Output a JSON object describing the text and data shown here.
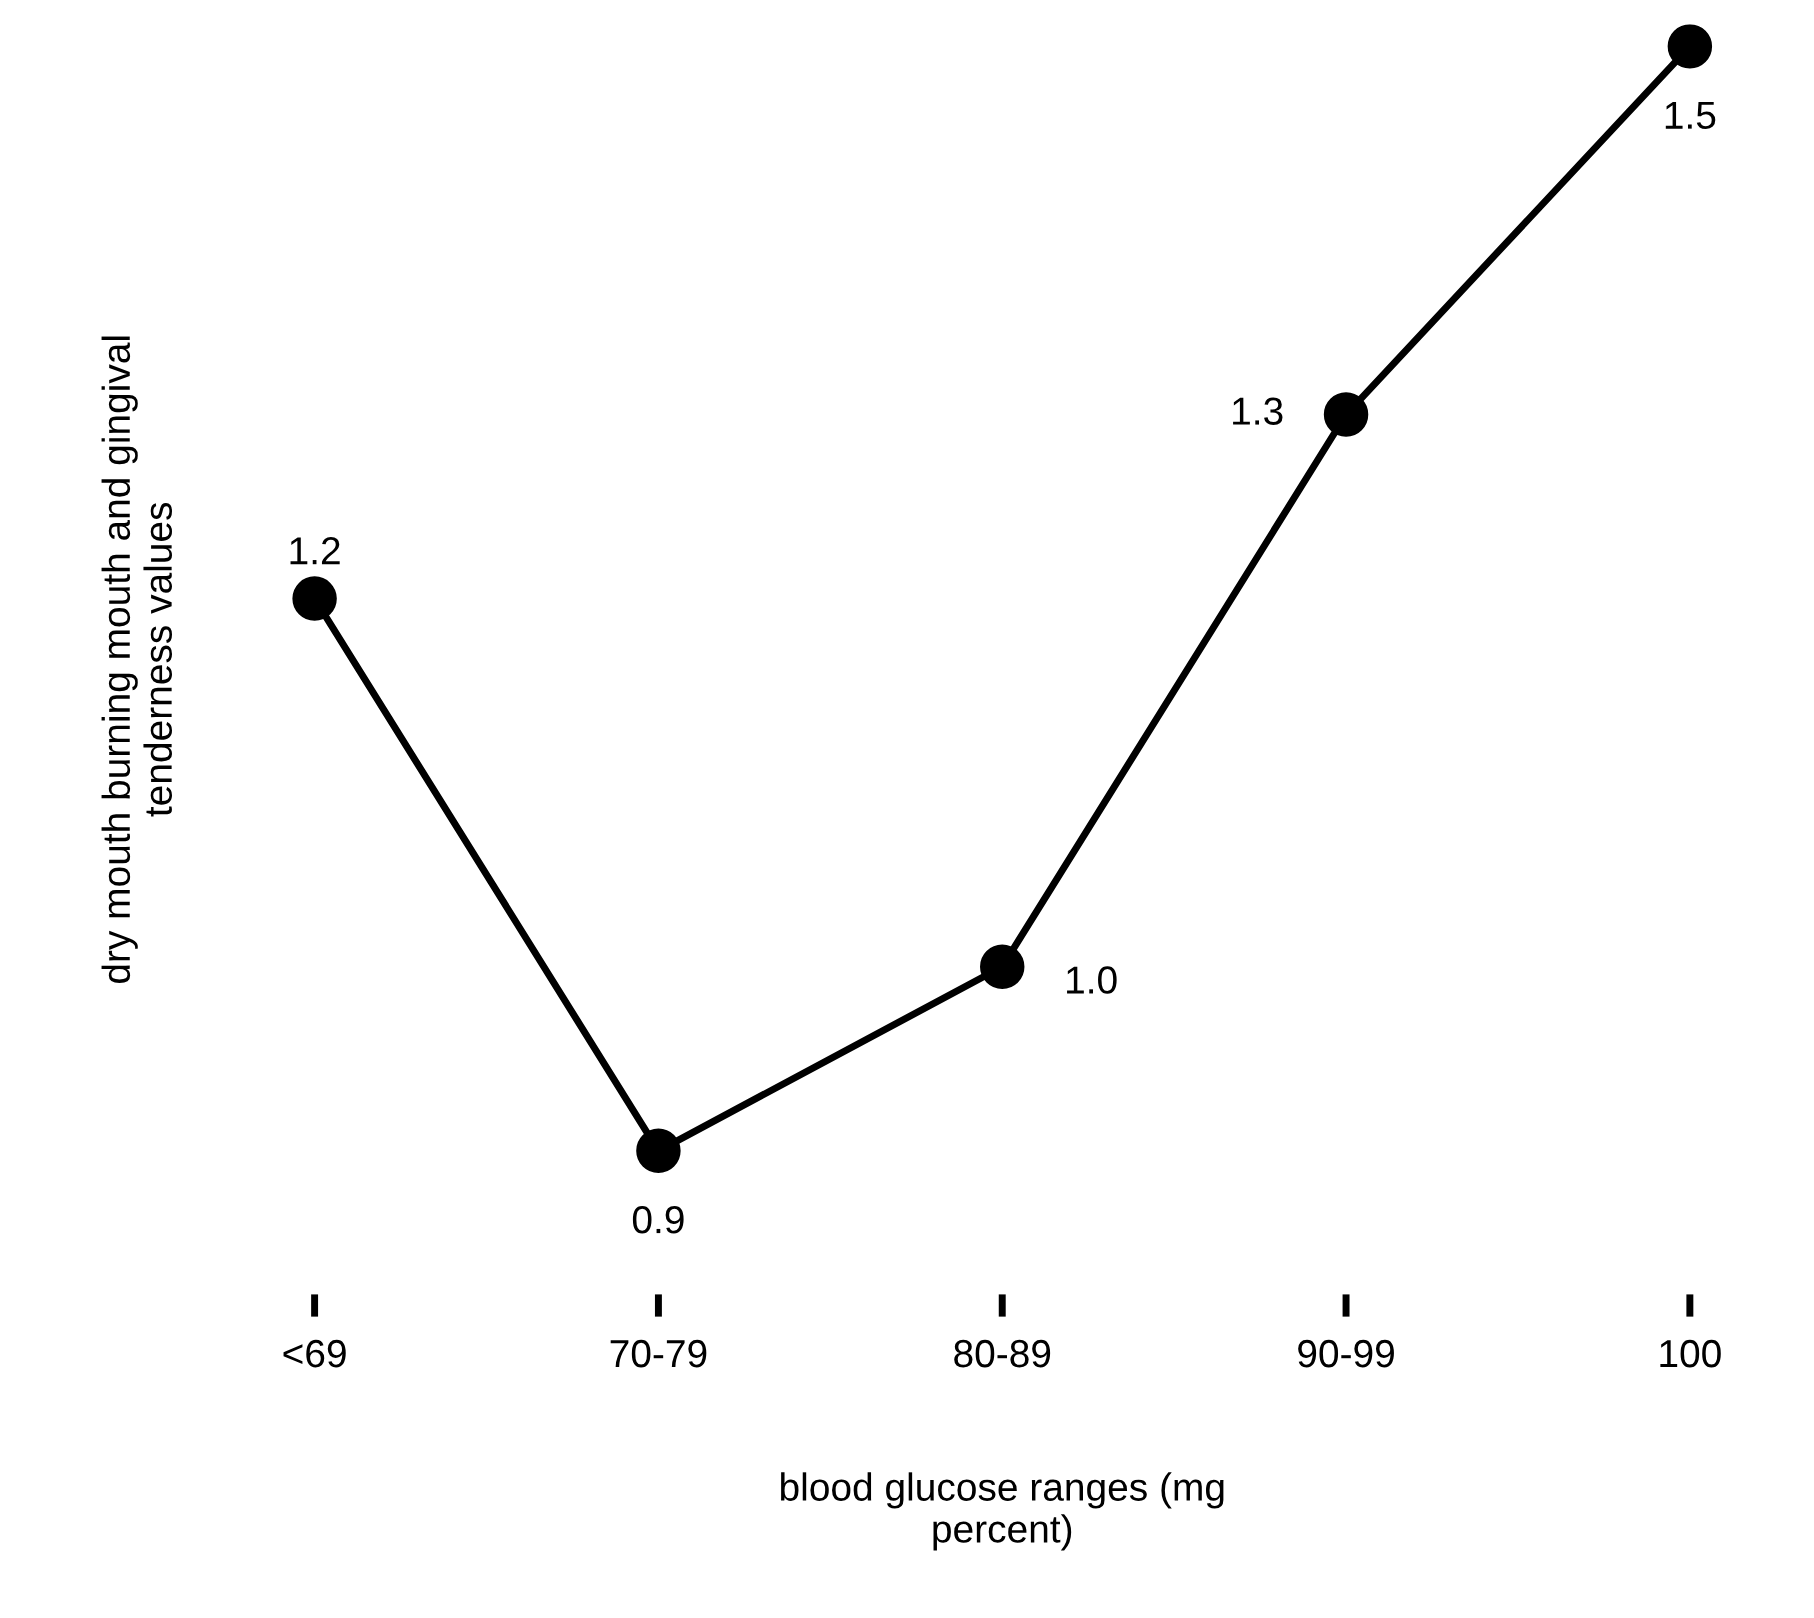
{
  "chart_data": {
    "type": "line",
    "xlabel": "blood glucose ranges (mg\npercent)",
    "ylabel": "dry mouth burning mouth and gingival\ntenderness values",
    "categories": [
      "<69",
      "70-79",
      "80-89",
      "90-99",
      "100"
    ],
    "series": [
      {
        "color": "#000000",
        "values": [
          1.2,
          0.9,
          1.0,
          1.3,
          1.5
        ],
        "value_labels": [
          "1.2",
          "0.9",
          "1.0",
          "1.3",
          "1.5"
        ]
      }
    ],
    "marker": "circle",
    "line_style": "solid",
    "grid": false,
    "legend": false
  }
}
